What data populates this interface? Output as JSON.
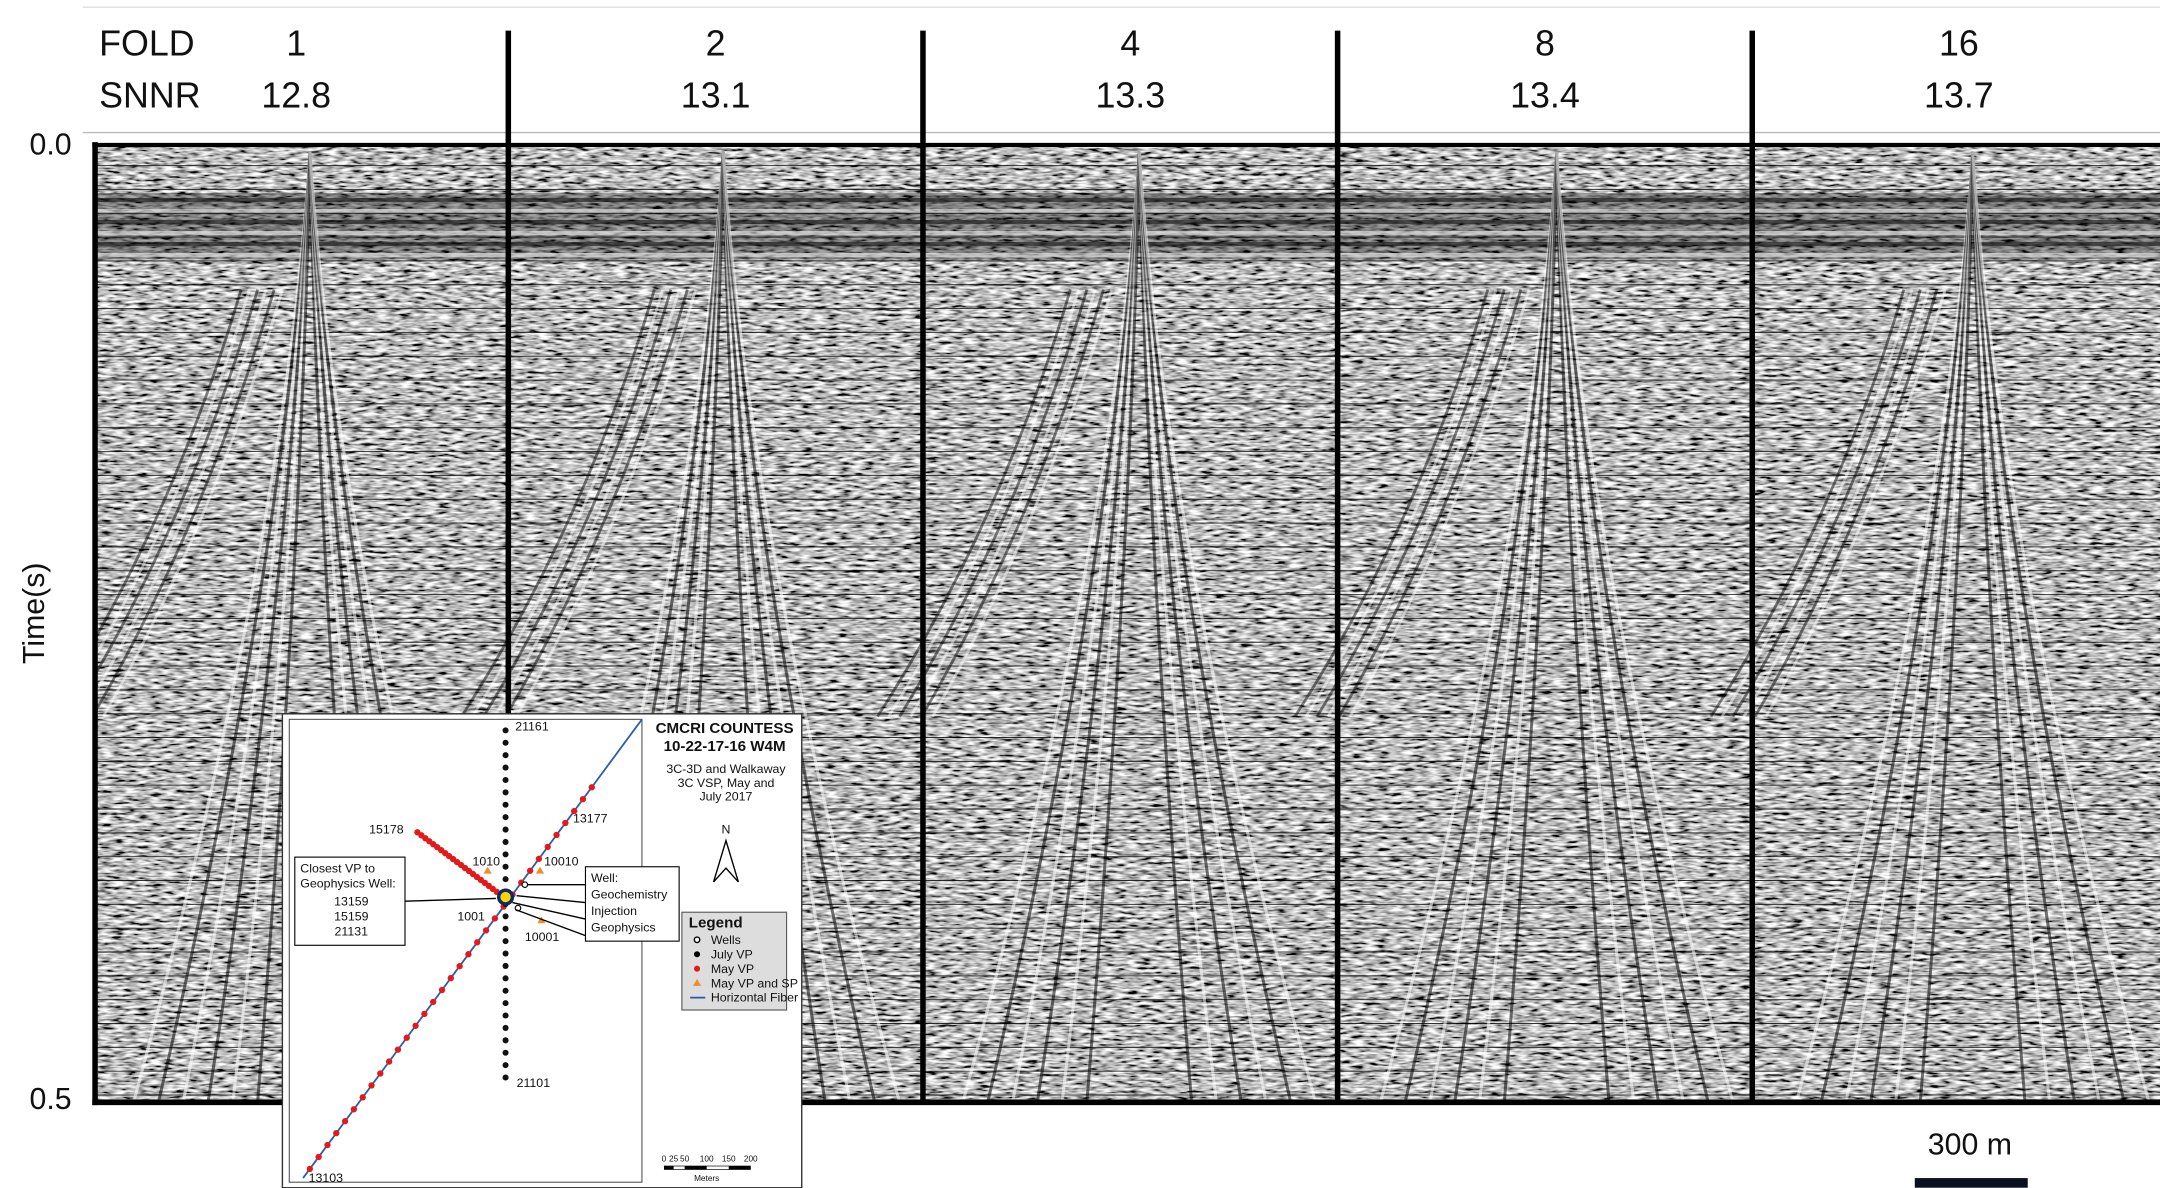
{
  "header": {
    "fold_label": "FOLD",
    "snnr_label": "SNNR"
  },
  "panels": [
    {
      "fold": 1,
      "snnr": 12.8
    },
    {
      "fold": 2,
      "snnr": 13.1
    },
    {
      "fold": 4,
      "snnr": 13.3
    },
    {
      "fold": 8,
      "snnr": 13.4
    },
    {
      "fold": 16,
      "snnr": 13.7
    }
  ],
  "y_axis": {
    "label": "Time(s)",
    "ticks": [
      {
        "value": 0,
        "label": "0.0"
      },
      {
        "value": 0.5,
        "label": "0.5"
      }
    ]
  },
  "scale_bar": "300 m",
  "inset_map": {
    "title": "CMCRI COUNTESS",
    "location": "10-22-17-16 W4M",
    "subtitle": [
      "3C-3D and Walkaway",
      "3C VSP, May and",
      "July 2017"
    ],
    "north": "N",
    "points": [
      "21161",
      "13177",
      "15178",
      "1010",
      "10010",
      "1001",
      "10001",
      "21101",
      "13103"
    ],
    "closest_vp_box": [
      "Closest VP to",
      "Geophysics Well:",
      "13159",
      "15159",
      "21131"
    ],
    "well_box": [
      "Well:",
      "Geochemistry",
      "Injection",
      "Geophysics"
    ],
    "legend": {
      "title": "Legend",
      "items": [
        "Wells",
        "July VP",
        "May VP",
        "May VP and SP",
        "Horizontal Fiber"
      ]
    },
    "scale": {
      "ticks": [
        "0",
        "25",
        "50",
        "100",
        "150",
        "200"
      ],
      "unit": "Meters"
    }
  }
}
